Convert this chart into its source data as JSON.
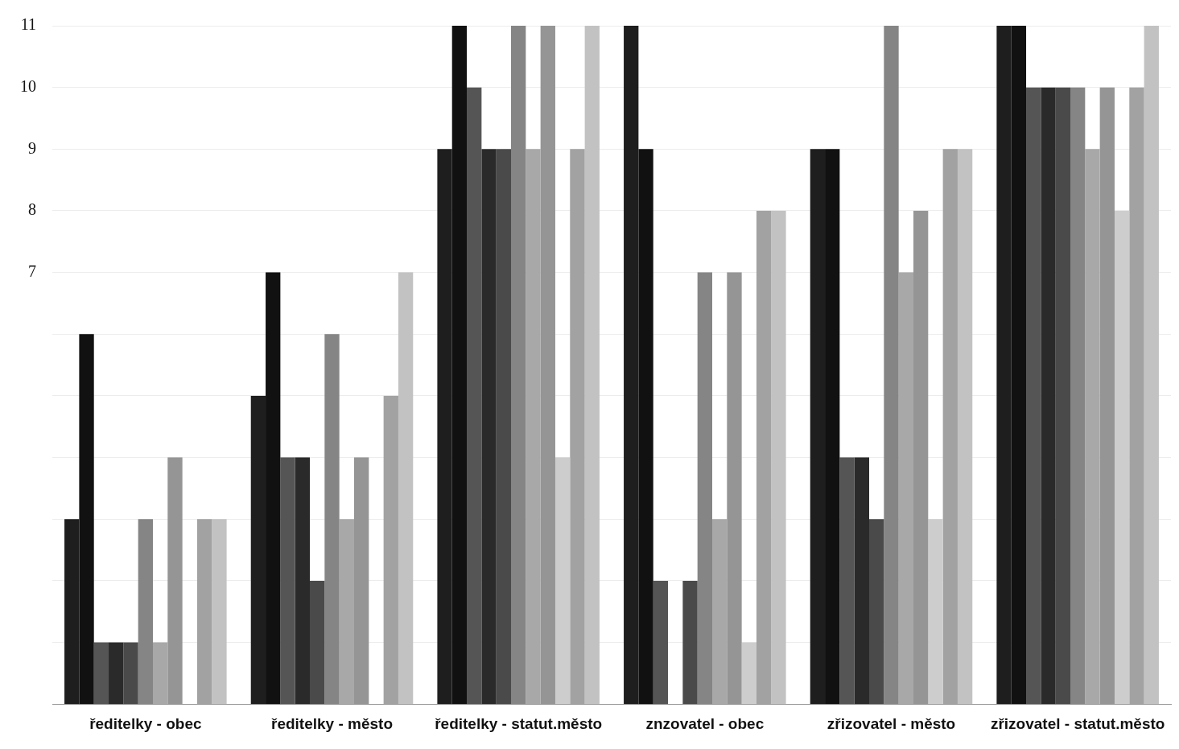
{
  "chart_data": {
    "type": "bar",
    "categories": [
      "ředitelky - obec",
      "ředitelky - město",
      "ředitelky - statut.město",
      "znzovatel - obec",
      "zřizovatel - město",
      "zřizovatel - statut.město"
    ],
    "series": [
      {
        "color": "#1e1e1e",
        "values": [
          3,
          5,
          9,
          11,
          9,
          11
        ]
      },
      {
        "color": "#111111",
        "values": [
          6,
          7,
          11,
          9,
          9,
          11
        ]
      },
      {
        "color": "#555555",
        "values": [
          1,
          4,
          10,
          2,
          4,
          10
        ]
      },
      {
        "color": "#2a2a2a",
        "values": [
          1,
          4,
          9,
          0,
          4,
          10
        ]
      },
      {
        "color": "#4a4a4a",
        "values": [
          1,
          2,
          9,
          2,
          3,
          10
        ]
      },
      {
        "color": "#858585",
        "values": [
          3,
          6,
          11,
          7,
          11,
          10
        ]
      },
      {
        "color": "#a8a8a8",
        "values": [
          1,
          3,
          9,
          3,
          7,
          9
        ]
      },
      {
        "color": "#959595",
        "values": [
          4,
          4,
          11,
          7,
          8,
          10
        ]
      },
      {
        "color": "#cdcdcd",
        "values": [
          0,
          0,
          4,
          1,
          3,
          8
        ]
      },
      {
        "color": "#a2a2a2",
        "values": [
          3,
          5,
          9,
          8,
          9,
          10
        ]
      },
      {
        "color": "#c2c2c2",
        "values": [
          3,
          7,
          11,
          8,
          9,
          11
        ]
      }
    ],
    "ylim": [
      0,
      11
    ],
    "yticks": [
      {
        "value": 1,
        "label": null
      },
      {
        "value": 2,
        "label": null
      },
      {
        "value": 3,
        "label": null
      },
      {
        "value": 4,
        "label": null
      },
      {
        "value": 5,
        "label": null
      },
      {
        "value": 6,
        "label": null
      },
      7,
      8,
      9,
      10,
      11
    ],
    "grid": "y",
    "legend": false
  }
}
